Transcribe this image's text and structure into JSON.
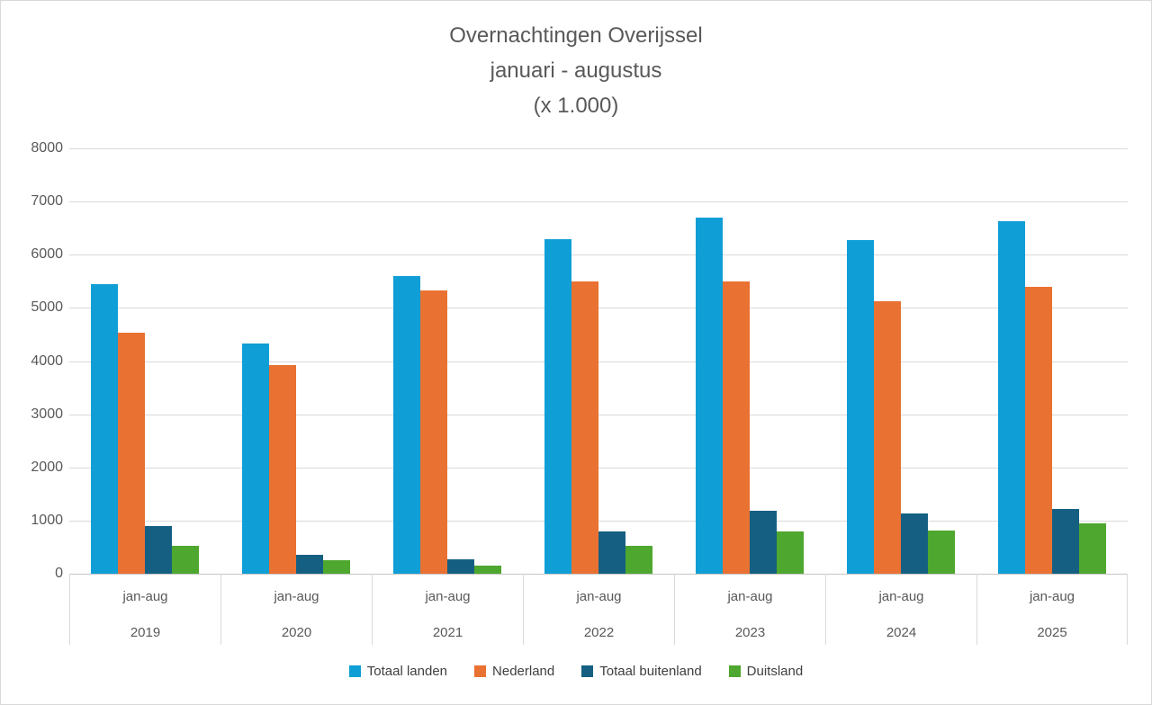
{
  "title_lines": [
    "Overnachtingen Overijssel",
    "januari - augustus",
    "(x 1.000)"
  ],
  "chart_data": {
    "type": "bar",
    "title": "Overnachtingen Overijssel januari - augustus (x 1.000)",
    "categories": [
      "2019",
      "2020",
      "2021",
      "2022",
      "2023",
      "2024",
      "2025"
    ],
    "category_sublabel": "jan-aug",
    "series": [
      {
        "name": "Totaal landen",
        "color": "#0F9ED5",
        "values": [
          5440,
          4330,
          5600,
          6300,
          6690,
          6280,
          6630
        ]
      },
      {
        "name": "Nederland",
        "color": "#E97132",
        "values": [
          4540,
          3930,
          5320,
          5490,
          5490,
          5120,
          5390
        ]
      },
      {
        "name": "Totaal buitenland",
        "color": "#156082",
        "values": [
          890,
          360,
          270,
          790,
          1180,
          1130,
          1220
        ]
      },
      {
        "name": "Duitsland",
        "color": "#4EA72E",
        "values": [
          530,
          250,
          150,
          530,
          790,
          820,
          940
        ]
      }
    ],
    "ylim": [
      0,
      8000
    ],
    "ytick_step": 1000,
    "ytick_labels": [
      "0",
      "1000",
      "2000",
      "3000",
      "4000",
      "5000",
      "6000",
      "7000",
      "8000"
    ],
    "grid": true,
    "legend_position": "bottom",
    "style": {
      "gridline_color": "#D9D9D9",
      "axis_line_color": "#C6C6C6",
      "text_color": "#595959",
      "legend_text_color": "#3F3F3F",
      "background": "#FFFFFF"
    }
  }
}
